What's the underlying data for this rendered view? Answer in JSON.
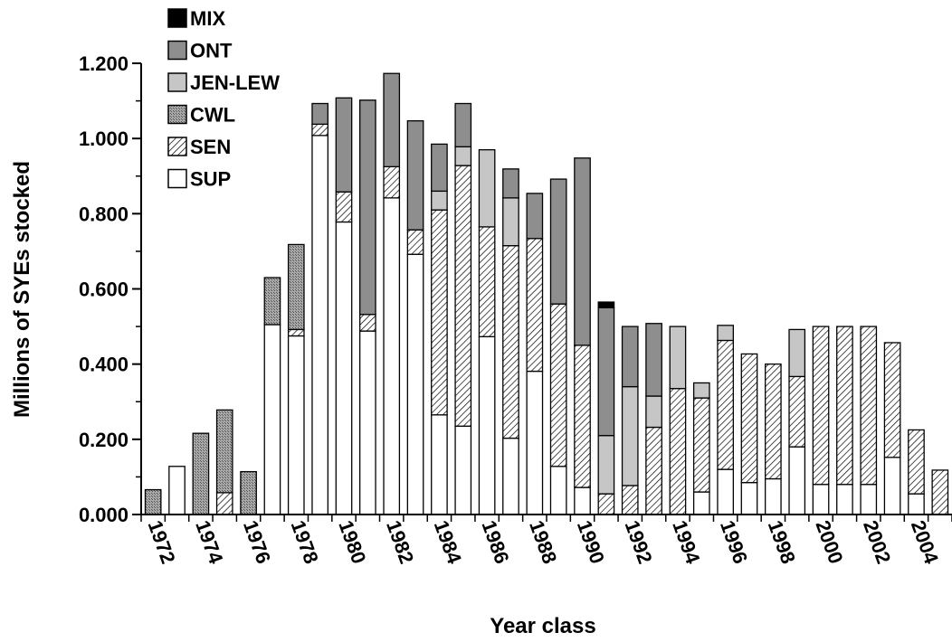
{
  "chart_data": {
    "type": "bar",
    "stacked": true,
    "xlabel": "Year class",
    "ylabel": "Millions of SYEs stocked",
    "ylim": [
      0,
      1.2
    ],
    "ytick_values": [
      0,
      0.2,
      0.4,
      0.6,
      0.8,
      1.0,
      1.2
    ],
    "ytick_labels": [
      "0.000",
      "0.200",
      "0.400",
      "0.600",
      "0.800",
      "1.000",
      "1.200"
    ],
    "categories": [
      1972,
      1973,
      1974,
      1975,
      1976,
      1977,
      1978,
      1979,
      1980,
      1981,
      1982,
      1983,
      1984,
      1985,
      1986,
      1987,
      1988,
      1989,
      1990,
      1991,
      1992,
      1993,
      1994,
      1995,
      1996,
      1997,
      1998,
      1999,
      2000,
      2001,
      2002,
      2003,
      2004,
      2005
    ],
    "xtick_labels": [
      "1972",
      "1974",
      "1976",
      "1978",
      "1980",
      "1982",
      "1984",
      "1986",
      "1988",
      "1990",
      "1992",
      "1994",
      "1996",
      "1998",
      "2000",
      "2002",
      "2004"
    ],
    "legend_position": "top-left",
    "legend_order": [
      "MIX",
      "ONT",
      "JEN-LEW",
      "CWL",
      "SEN",
      "SUP"
    ],
    "series": [
      {
        "name": "SUP",
        "pattern": "white",
        "values": [
          0,
          0.128,
          0,
          0,
          0,
          0.505,
          0.475,
          1.008,
          0.778,
          0.488,
          0.842,
          0.692,
          0.265,
          0.235,
          0.473,
          0.203,
          0.381,
          0.128,
          0.072,
          0,
          0,
          0,
          0,
          0.06,
          0.12,
          0.085,
          0.095,
          0.18,
          0.08,
          0.08,
          0.08,
          0.152,
          0.055,
          0
        ]
      },
      {
        "name": "SEN",
        "pattern": "hatch",
        "values": [
          0,
          0,
          0,
          0.058,
          0,
          0,
          0.017,
          0.03,
          0.08,
          0.044,
          0.083,
          0.065,
          0.545,
          0.693,
          0.292,
          0.512,
          0.353,
          0.432,
          0.378,
          0.055,
          0.077,
          0.232,
          0.335,
          0.25,
          0.343,
          0.342,
          0.305,
          0.187,
          0.42,
          0.42,
          0.42,
          0.305,
          0.17,
          0.118
        ]
      },
      {
        "name": "CWL",
        "pattern": "stipple",
        "values": [
          0.066,
          0,
          0.216,
          0.22,
          0.114,
          0.125,
          0.226,
          0,
          0,
          0,
          0,
          0,
          0,
          0,
          0,
          0,
          0,
          0,
          0,
          0,
          0,
          0,
          0,
          0,
          0,
          0,
          0,
          0,
          0,
          0,
          0,
          0,
          0,
          0
        ]
      },
      {
        "name": "JEN-LEW",
        "pattern": "light",
        "values": [
          0,
          0,
          0,
          0,
          0,
          0,
          0,
          0,
          0,
          0,
          0,
          0,
          0.05,
          0.05,
          0.205,
          0.127,
          0,
          0,
          0,
          0.155,
          0.263,
          0.083,
          0.165,
          0.04,
          0.04,
          0,
          0,
          0.125,
          0,
          0,
          0,
          0,
          0,
          0
        ]
      },
      {
        "name": "ONT",
        "pattern": "dark",
        "values": [
          0,
          0,
          0,
          0,
          0,
          0,
          0,
          0.055,
          0.25,
          0.57,
          0.248,
          0.29,
          0.125,
          0.115,
          0,
          0.077,
          0.12,
          0.332,
          0.498,
          0.34,
          0.16,
          0.193,
          0,
          0,
          0,
          0,
          0,
          0,
          0,
          0,
          0,
          0,
          0,
          0
        ]
      },
      {
        "name": "MIX",
        "pattern": "black",
        "values": [
          0,
          0,
          0,
          0,
          0,
          0,
          0,
          0,
          0,
          0,
          0,
          0,
          0,
          0,
          0,
          0,
          0,
          0,
          0,
          0.015,
          0,
          0,
          0,
          0,
          0,
          0,
          0,
          0,
          0,
          0,
          0,
          0,
          0,
          0
        ]
      }
    ]
  }
}
